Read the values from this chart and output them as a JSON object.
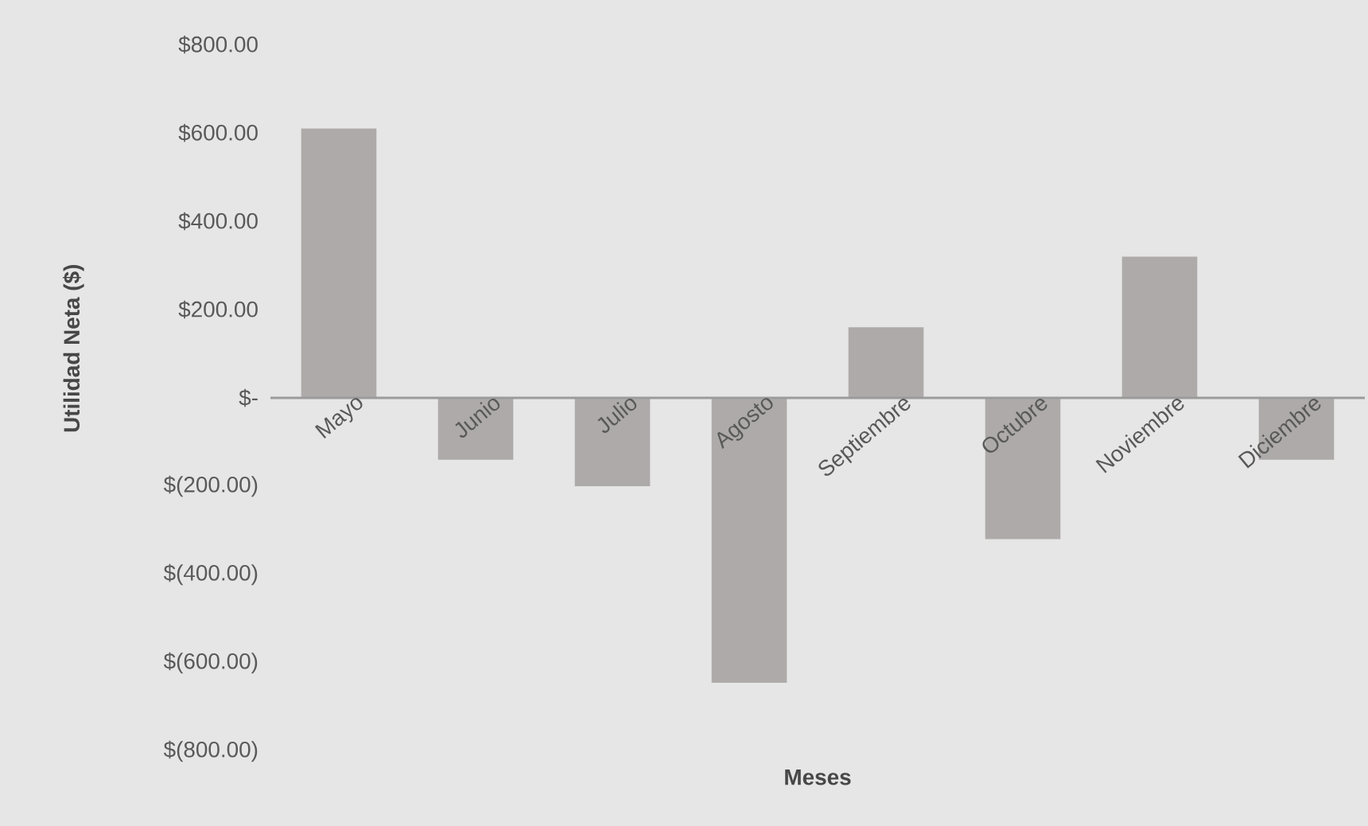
{
  "chart_data": {
    "type": "bar",
    "xlabel": "Meses",
    "ylabel": "Utilidad Neta ($)",
    "categories": [
      "Mayo",
      "Junio",
      "Julio",
      "Agosto",
      "Septiembre",
      "Octubre",
      "Noviembre",
      "Diciembre"
    ],
    "values": [
      610,
      -140,
      -200,
      -645,
      160,
      -320,
      320,
      -140
    ],
    "color": "#aeaaaa",
    "ylim": [
      -800,
      800
    ],
    "yticks": [
      {
        "value": 800,
        "label": "$800.00"
      },
      {
        "value": 600,
        "label": "$600.00"
      },
      {
        "value": 400,
        "label": "$400.00"
      },
      {
        "value": 200,
        "label": "$200.00"
      },
      {
        "value": 0,
        "label": "$-"
      },
      {
        "value": -200,
        "label": "$(200.00)"
      },
      {
        "value": -400,
        "label": "$(400.00)"
      },
      {
        "value": -600,
        "label": "$(600.00)"
      },
      {
        "value": -800,
        "label": "$(800.00)"
      }
    ]
  }
}
